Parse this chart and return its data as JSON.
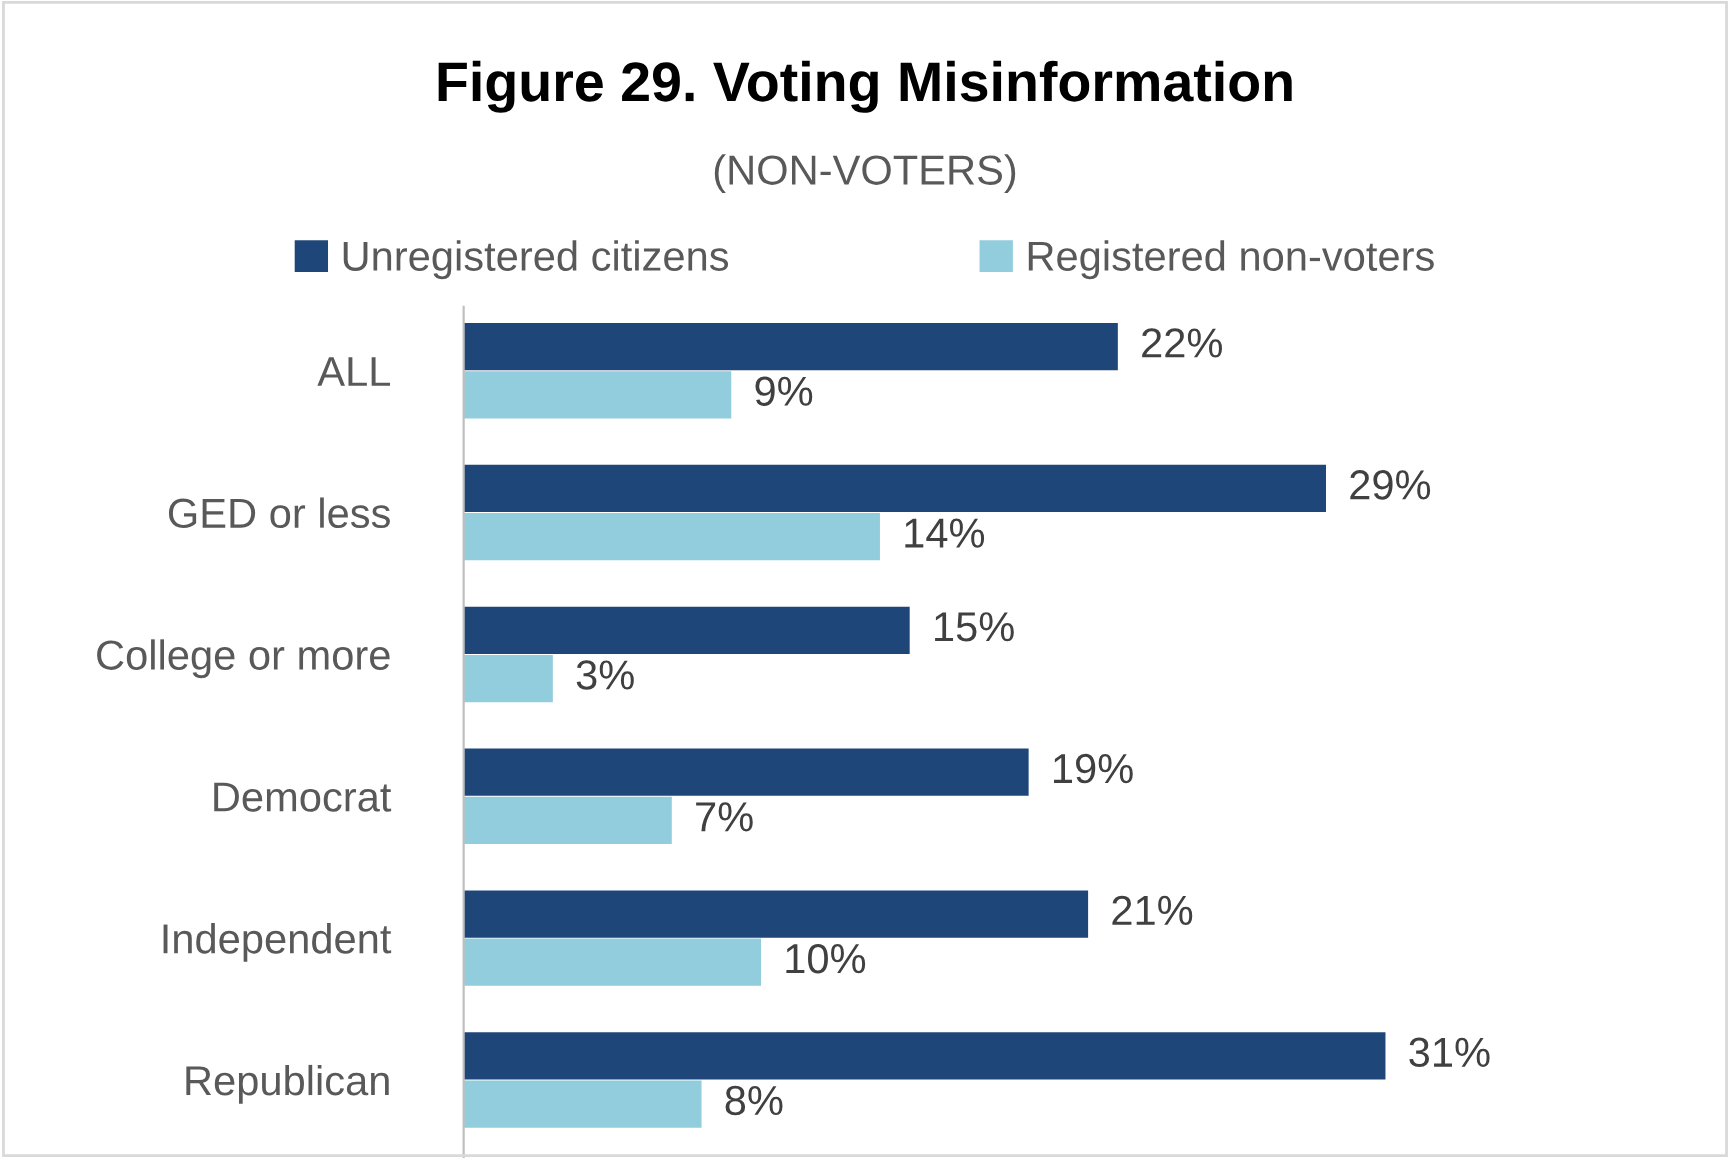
{
  "chart_data": {
    "type": "bar",
    "orientation": "horizontal",
    "title": "Figure 29. Voting Misinformation",
    "subtitle": "(NON-VOTERS)",
    "categories": [
      "ALL",
      "GED or less",
      "College or more",
      "Democrat",
      "Independent",
      "Republican"
    ],
    "series": [
      {
        "name": "Unregistered citizens",
        "color": "#1f4678",
        "values": [
          22,
          29,
          15,
          19,
          21,
          31
        ],
        "value_labels": [
          "22%",
          "29%",
          "15%",
          "19%",
          "21%",
          "31%"
        ]
      },
      {
        "name": "Registered non-voters",
        "color": "#92cddd",
        "values": [
          9,
          14,
          3,
          7,
          10,
          8
        ],
        "value_labels": [
          "9%",
          "14%",
          "3%",
          "7%",
          "10%",
          "8%"
        ]
      }
    ],
    "legend": "top",
    "grid": false
  }
}
